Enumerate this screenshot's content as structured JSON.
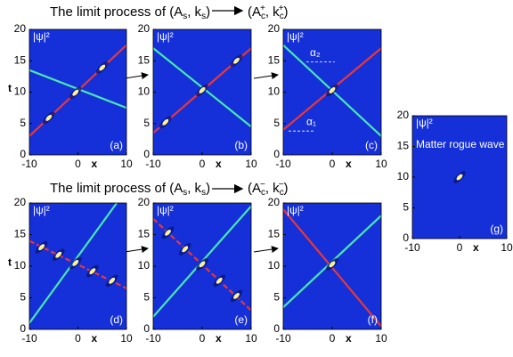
{
  "titles": [
    [
      "The limit process of (A",
      "s",
      ", k",
      "s",
      ")",
      "(A",
      "c",
      "+",
      ", k",
      "c",
      "+",
      ")"
    ],
    [
      "The limit process of (A",
      "s",
      ", k",
      "s",
      ")",
      "(A",
      "c",
      "−",
      ", k",
      "c",
      "−",
      ")"
    ]
  ],
  "chart_data": [
    {
      "type": "line",
      "label": "(a)",
      "zlabel": "|ψ|²",
      "xlabel": "x",
      "ylabel": "t",
      "xlim": [
        -10,
        10
      ],
      "ylim": [
        0,
        20
      ],
      "xticks": [
        -10,
        0,
        10
      ],
      "yticks": [
        0,
        5,
        10,
        15,
        20
      ],
      "series": [
        {
          "color": "#e83838",
          "dashed": false,
          "x": [
            -10,
            10
          ],
          "values": [
            3,
            17.5
          ]
        },
        {
          "color": "#48e8b0",
          "dashed": false,
          "x": [
            -10,
            10
          ],
          "values": [
            13.5,
            7.5
          ]
        }
      ],
      "peaks": {
        "x": [
          -6,
          -0.5,
          5
        ],
        "values": [
          5.9,
          9.9,
          13.9
        ]
      }
    },
    {
      "type": "line",
      "label": "(b)",
      "zlabel": "|ψ|²",
      "xlabel": "x",
      "xlim": [
        -10,
        10
      ],
      "ylim": [
        0,
        20
      ],
      "xticks": [
        -10,
        0,
        10
      ],
      "yticks": [
        0,
        5,
        10,
        15,
        20
      ],
      "series": [
        {
          "color": "#e83838",
          "dashed": false,
          "x": [
            -10,
            10
          ],
          "values": [
            3.5,
            17
          ]
        },
        {
          "color": "#48e8b0",
          "dashed": false,
          "x": [
            -10,
            10
          ],
          "values": [
            17,
            4.5
          ]
        }
      ],
      "peaks": {
        "x": [
          -7.5,
          0,
          7
        ],
        "values": [
          5.2,
          10.3,
          15
        ]
      }
    },
    {
      "type": "line",
      "label": "(c)",
      "zlabel": "|ψ|²",
      "xlabel": "x",
      "xlim": [
        -10,
        10
      ],
      "ylim": [
        0,
        20
      ],
      "xticks": [
        -10,
        0,
        10
      ],
      "yticks": [
        0,
        5,
        10,
        15,
        20
      ],
      "annotations": [
        "α₂",
        "α₁"
      ],
      "series": [
        {
          "color": "#e83838",
          "dashed": false,
          "x": [
            -10,
            10
          ],
          "values": [
            4,
            17
          ]
        },
        {
          "color": "#48e8b0",
          "dashed": false,
          "x": [
            -10,
            10
          ],
          "values": [
            17.5,
            3
          ]
        }
      ],
      "peaks": {
        "x": [
          0
        ],
        "values": [
          10.3
        ]
      }
    },
    {
      "type": "line",
      "label": "(d)",
      "zlabel": "|ψ|²",
      "xlabel": "x",
      "ylabel": "t",
      "xlim": [
        -10,
        10
      ],
      "ylim": [
        0,
        20
      ],
      "xticks": [
        -10,
        0,
        10
      ],
      "yticks": [
        0,
        5,
        10,
        15,
        20
      ],
      "series": [
        {
          "color": "#e83838",
          "dashed": true,
          "x": [
            -10,
            10
          ],
          "values": [
            14,
            6.5
          ]
        },
        {
          "color": "#48e8b0",
          "dashed": false,
          "x": [
            -10,
            8
          ],
          "values": [
            1,
            20
          ]
        }
      ],
      "peaks": {
        "x": [
          -7.5,
          -4,
          -0.5,
          3,
          7
        ],
        "values": [
          13,
          11.8,
          10.5,
          9.2,
          7.7
        ]
      }
    },
    {
      "type": "line",
      "label": "(e)",
      "zlabel": "|ψ|²",
      "xlabel": "x",
      "xlim": [
        -10,
        10
      ],
      "ylim": [
        0,
        20
      ],
      "xticks": [
        -10,
        0,
        10
      ],
      "yticks": [
        0,
        5,
        10,
        15,
        20
      ],
      "series": [
        {
          "color": "#e83838",
          "dashed": true,
          "x": [
            -10,
            10
          ],
          "values": [
            17.5,
            3
          ]
        },
        {
          "color": "#48e8b0",
          "dashed": false,
          "x": [
            -10,
            10
          ],
          "values": [
            2,
            19.5
          ]
        }
      ],
      "peaks": {
        "x": [
          -7,
          -3.5,
          0,
          3.5,
          7
        ],
        "values": [
          15.3,
          12.7,
          10.3,
          7.7,
          5.3
        ]
      }
    },
    {
      "type": "line",
      "label": "(f)",
      "zlabel": "|ψ|²",
      "xlabel": "x",
      "xlim": [
        -10,
        10
      ],
      "ylim": [
        0,
        20
      ],
      "xticks": [
        -10,
        0,
        10
      ],
      "yticks": [
        0,
        5,
        10,
        15,
        20
      ],
      "series": [
        {
          "color": "#e83838",
          "dashed": false,
          "x": [
            -10,
            10
          ],
          "values": [
            19,
            0.5
          ]
        },
        {
          "color": "#48e8b0",
          "dashed": false,
          "x": [
            -10,
            10
          ],
          "values": [
            3.5,
            18
          ]
        }
      ],
      "peaks": {
        "x": [
          0
        ],
        "values": [
          10.3
        ]
      }
    },
    {
      "type": "line",
      "label": "(g)",
      "zlabel": "|ψ|²",
      "xlabel": "x",
      "annotations": [
        "Matter rogue wave"
      ],
      "xlim": [
        -10,
        10
      ],
      "ylim": [
        0,
        20
      ],
      "xticks": [
        -10,
        0,
        10
      ],
      "yticks": [
        0,
        5,
        10,
        15,
        20
      ],
      "series": [],
      "peaks": {
        "x": [
          0
        ],
        "values": [
          10
        ]
      }
    }
  ]
}
